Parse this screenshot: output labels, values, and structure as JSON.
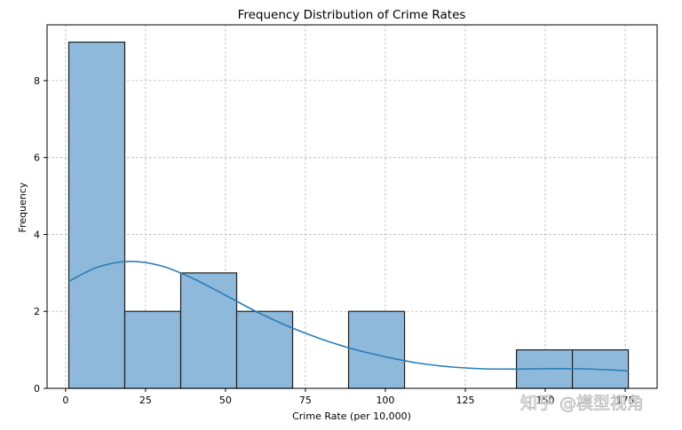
{
  "chart_data": {
    "type": "bar",
    "title": "Frequency Distribution of Crime Rates",
    "xlabel": "Crime Rate (per 10,000)",
    "ylabel": "Frequency",
    "xlim": [
      -5.8,
      185
    ],
    "ylim": [
      0,
      9.45
    ],
    "xticks": [
      0,
      25,
      50,
      75,
      100,
      125,
      150,
      175
    ],
    "yticks": [
      0,
      2,
      4,
      6,
      8
    ],
    "grid": true,
    "bins": [
      {
        "x0": 1,
        "x1": 18.5,
        "count": 9
      },
      {
        "x0": 18.5,
        "x1": 36,
        "count": 2
      },
      {
        "x0": 36,
        "x1": 53.5,
        "count": 3
      },
      {
        "x0": 53.5,
        "x1": 71,
        "count": 2
      },
      {
        "x0": 71,
        "x1": 88.5,
        "count": 0
      },
      {
        "x0": 88.5,
        "x1": 106,
        "count": 2
      },
      {
        "x0": 106,
        "x1": 123.5,
        "count": 0
      },
      {
        "x0": 123.5,
        "x1": 141,
        "count": 0
      },
      {
        "x0": 141,
        "x1": 158.5,
        "count": 1
      },
      {
        "x0": 158.5,
        "x1": 176,
        "count": 1
      }
    ],
    "kde": {
      "x": [
        1,
        10,
        20,
        30,
        40,
        50,
        60,
        70,
        80,
        90,
        100,
        110,
        120,
        130,
        140,
        150,
        160,
        170,
        176
      ],
      "y": [
        2.78,
        3.15,
        3.3,
        3.18,
        2.85,
        2.42,
        1.98,
        1.6,
        1.28,
        1.02,
        0.82,
        0.66,
        0.56,
        0.51,
        0.5,
        0.51,
        0.51,
        0.48,
        0.45
      ]
    }
  },
  "watermark": "知乎 @模型视角"
}
